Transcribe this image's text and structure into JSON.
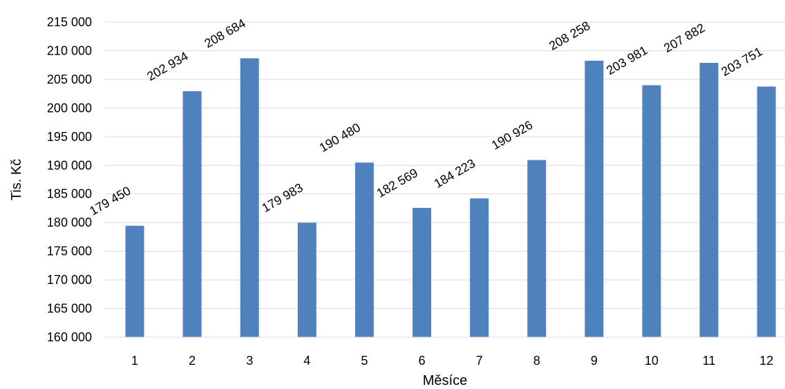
{
  "chart_data": {
    "type": "bar",
    "categories": [
      "1",
      "2",
      "3",
      "4",
      "5",
      "6",
      "7",
      "8",
      "9",
      "10",
      "11",
      "12"
    ],
    "values": [
      179450,
      202934,
      208684,
      179983,
      190480,
      182569,
      184223,
      190926,
      208258,
      203981,
      207882,
      203751
    ],
    "value_labels": [
      "179 450",
      "202 934",
      "208 684",
      "179 983",
      "190 480",
      "182 569",
      "184 223",
      "190 926",
      "208 258",
      "203 981",
      "207 882",
      "203 751"
    ],
    "xlabel": "Měsíce",
    "ylabel": "Tis. Kč",
    "ylim": [
      160000,
      215000
    ],
    "y_ticks": [
      160000,
      165000,
      170000,
      175000,
      180000,
      185000,
      190000,
      195000,
      200000,
      205000,
      210000,
      215000
    ],
    "y_tick_labels": [
      "160 000",
      "165 000",
      "170 000",
      "175 000",
      "180 000",
      "185 000",
      "190 000",
      "195 000",
      "200 000",
      "205 000",
      "210 000",
      "215 000"
    ],
    "grid": true,
    "legend": "none",
    "bar_color": "#4f81bd"
  }
}
